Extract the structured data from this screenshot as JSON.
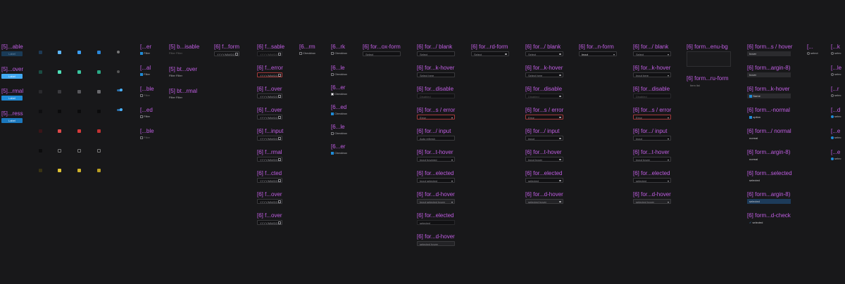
{
  "col1": {
    "titles": [
      "[5]...able",
      "[5]...over",
      "[5]...rmal",
      "[5]...ress"
    ],
    "btn": "Label"
  },
  "col3": {
    "titles": [
      "[...er",
      "[...al",
      "[...ble",
      "[...ed",
      "[...ble"
    ],
    "chip": "Filter"
  },
  "col4": {
    "titles": [
      "[5] b...isable",
      "[5] bt...over",
      "[5] bt...rmal"
    ],
    "chip_a": "Filter",
    "chip_b": "Filter"
  },
  "col5": {
    "title": "[6] f...form",
    "value": "YYYY/MM/DD"
  },
  "col6": {
    "titles": [
      "[6] f...sable",
      "[6] f...error",
      "[6] f...over",
      "[6] f...over",
      "[6] f...input",
      "[6] f...rmal",
      "[6] f...cted",
      "[6] f...over",
      "[6] f...over"
    ],
    "value": "YYYY/MM/DD"
  },
  "col7": {
    "title": "[6...rm",
    "label": "Checkbox"
  },
  "col8": {
    "titles": [
      "[6...rk",
      "[6...le",
      "[6...er",
      "[6...ed",
      "[6...le",
      "[6...er"
    ],
    "label": "Checkbox"
  },
  "col9": {
    "title": "[6] for...ox-form",
    "value": "Select"
  },
  "col10": {
    "titles": [
      "[6] for.../ blank",
      "[6] for...k-hover",
      "[6] for...disable",
      "[6] for...s / error",
      "[6] for.../ input",
      "[6] for...t-hover",
      "[6] for...elected",
      "[6] for...d-hover",
      "[6] for...elected",
      "[6] for...d-hover"
    ],
    "values": [
      "Select",
      "Select here",
      "Disabled",
      "Error",
      "Auto refresh",
      "Input hovered",
      "Input selected",
      "Input selected hover",
      "selected",
      "selected hover"
    ]
  },
  "col11": {
    "title": "[6] for...rd-form",
    "value": "Select"
  },
  "col12": {
    "titles": [
      "[6] for.../ blank",
      "[6] for...k-hover",
      "[6] for...disable",
      "[6] for...s / error",
      "[6] for.../ input",
      "[6] for...t-hover",
      "[6] for...elected",
      "[6] for...d-hover"
    ],
    "values": [
      "Select",
      "Select here",
      "Disabled",
      "Error",
      "Input",
      "Input hover",
      "selected",
      "selected hover"
    ]
  },
  "col13": {
    "title": "[6] for...n-form",
    "value": "Input"
  },
  "col14": {
    "titles": [
      "[6] for.../ blank",
      "[6] for...k-hover",
      "[6] for...disable",
      "[6] for...s / error",
      "[6] for.../ input",
      "[6] for...t-hover",
      "[6] for...elected",
      "[6] for...d-hover"
    ],
    "values": [
      "Select",
      "Input here",
      "Disabled",
      "Error",
      "Input",
      "Input hover",
      "selected",
      "selected hover"
    ]
  },
  "col15": {
    "titles": [
      "[6] form...enu-bg",
      "[6] form...ru-form"
    ],
    "item": "Item list"
  },
  "col16": {
    "titles": [
      "[6] form...s / hover",
      "[6] form...argin-8)",
      "[6] form...k-hover",
      "[6] form...-normal",
      "[6] form.../ normal",
      "[6] form...argin-8)",
      "[6] form...selected",
      "[6] form...argin-8)",
      "[6] form...d-check"
    ],
    "items": [
      "hover",
      "hover",
      "Name",
      "option",
      "normal",
      "normal",
      "selected",
      "selected",
      "selected"
    ]
  },
  "col17": {
    "title": "[...",
    "item": "select"
  },
  "col18": {
    "titles": [
      "[...k",
      "[...le",
      "[...r",
      "[...d",
      "[...e",
      "[...e"
    ],
    "item": "selec"
  },
  "colors": {
    "accent": "#1f8bd6",
    "title": "#c15ee4",
    "bg": "#18181a"
  }
}
